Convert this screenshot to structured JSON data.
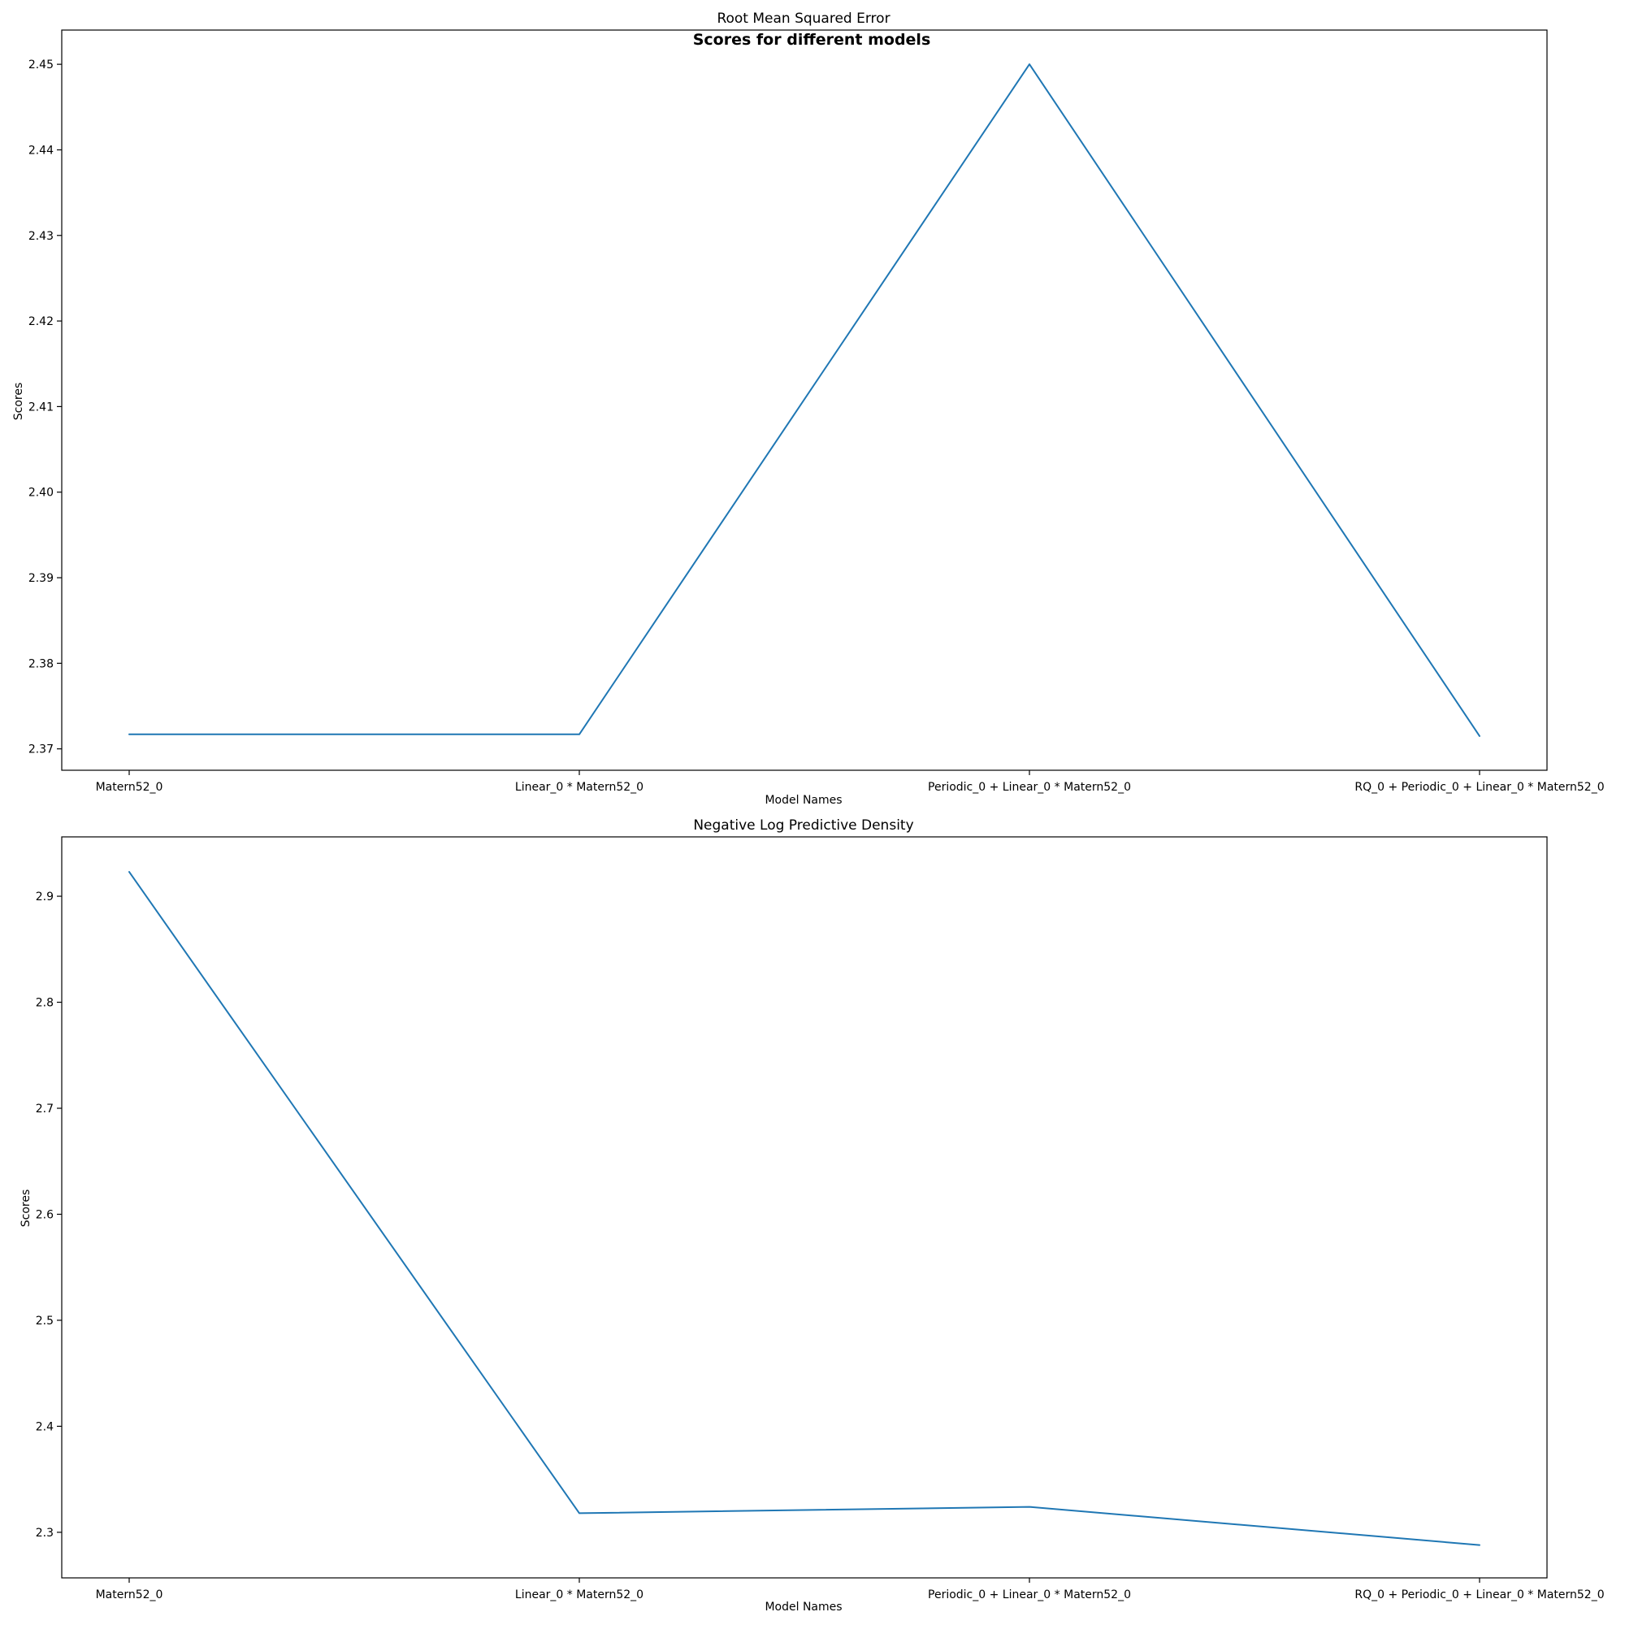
{
  "figure": {
    "suptitle": "Scores for different models"
  },
  "chart_data": [
    {
      "type": "line",
      "title": "Root Mean Squared Error",
      "xlabel": "Model Names",
      "ylabel": "Scores",
      "categories": [
        "Matern52_0",
        "Linear_0 * Matern52_0",
        "Periodic_0 + Linear_0 * Matern52_0",
        "RQ_0 + Periodic_0 + Linear_0 * Matern52_0"
      ],
      "series": [
        {
          "values": [
            2.3717,
            2.3717,
            2.45,
            2.3715
          ],
          "color": "#1f77b4"
        }
      ],
      "ylim": [
        2.3675,
        2.454
      ],
      "yticks": [
        2.37,
        2.38,
        2.39,
        2.4,
        2.41,
        2.42,
        2.43,
        2.44,
        2.45
      ],
      "ytick_labels": [
        "2.37",
        "2.38",
        "2.39",
        "2.40",
        "2.41",
        "2.42",
        "2.43",
        "2.44",
        "2.45"
      ],
      "grid": false,
      "legend": "none"
    },
    {
      "type": "line",
      "title": "Negative Log Predictive Density",
      "xlabel": "Model Names",
      "ylabel": "Scores",
      "categories": [
        "Matern52_0",
        "Linear_0 * Matern52_0",
        "Periodic_0 + Linear_0 * Matern52_0",
        "RQ_0 + Periodic_0 + Linear_0 * Matern52_0"
      ],
      "series": [
        {
          "values": [
            2.923,
            2.318,
            2.324,
            2.288
          ],
          "color": "#1f77b4"
        }
      ],
      "ylim": [
        2.257,
        2.956
      ],
      "yticks": [
        2.3,
        2.4,
        2.5,
        2.6,
        2.7,
        2.8,
        2.9
      ],
      "ytick_labels": [
        "2.3",
        "2.4",
        "2.5",
        "2.6",
        "2.7",
        "2.8",
        "2.9"
      ],
      "grid": false,
      "legend": "none"
    }
  ]
}
